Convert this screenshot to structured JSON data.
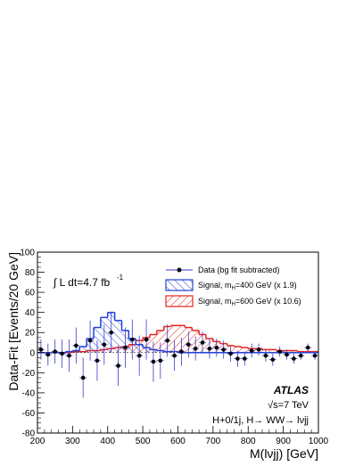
{
  "chart_data": {
    "type": "histogram",
    "title": "",
    "xlabel": "M(lνjj) [GeV]",
    "ylabel": "Data-Fit [Events/20 GeV]",
    "xlim": [
      200,
      1000
    ],
    "ylim": [
      -80,
      100
    ],
    "x_ticks": [
      200,
      300,
      400,
      500,
      600,
      700,
      800,
      900,
      1000
    ],
    "y_ticks": [
      -80,
      -60,
      -40,
      -20,
      0,
      20,
      40,
      60,
      80,
      100
    ],
    "grid": false,
    "legend_position": "top-right",
    "lumi_label": "∫ L dt=4.7 fb",
    "lumi_superscript": "-1",
    "atlas_label": "ATLAS",
    "energy_label": "√s=7 TeV",
    "channel_label": "H+0/1j, H→ WW→ lνjj",
    "series": [
      {
        "name": "Data (bg fit subtracted)",
        "kind": "points",
        "color": "#000000",
        "x": [
          210,
          230,
          250,
          270,
          290,
          310,
          330,
          350,
          370,
          390,
          410,
          430,
          450,
          470,
          490,
          510,
          530,
          550,
          570,
          590,
          610,
          630,
          650,
          670,
          690,
          710,
          730,
          750,
          770,
          790,
          810,
          830,
          850,
          870,
          890,
          910,
          930,
          950,
          970,
          990
        ],
        "y": [
          3,
          -2,
          1,
          -1,
          -3,
          7,
          -25,
          12,
          -8,
          8,
          20,
          -13,
          5,
          13,
          -3,
          13,
          -9,
          -8,
          12,
          -3,
          1,
          8,
          4,
          10,
          4,
          5,
          3,
          -1,
          -6,
          -6,
          2,
          3,
          -3,
          -7,
          1,
          -2,
          -6,
          -3,
          5,
          -3
        ],
        "yerr": [
          10,
          11,
          12,
          14,
          16,
          18,
          20,
          20,
          20,
          20,
          20,
          20,
          20,
          20,
          20,
          20,
          20,
          18,
          16,
          15,
          14,
          13,
          12,
          11,
          10,
          9,
          9,
          8,
          8,
          7,
          7,
          6,
          6,
          6,
          5,
          5,
          5,
          4,
          4,
          4
        ]
      },
      {
        "name": "Signal, m_H=400 GeV (x 1.9)",
        "label_prefix": "Signal, m",
        "label_sub": "H",
        "label_suffix": "=400 GeV (x 1.9)",
        "kind": "hist",
        "color": "#1f3fd6",
        "bin_width": 20,
        "bin_low_edges": [
          200,
          220,
          240,
          260,
          280,
          300,
          320,
          340,
          360,
          380,
          400,
          420,
          440,
          460,
          480,
          500,
          520,
          540,
          560,
          580,
          600,
          620,
          640,
          660,
          680,
          700,
          720,
          740,
          760,
          780,
          800,
          820,
          840,
          860,
          880,
          900,
          920,
          940,
          960,
          980
        ],
        "values": [
          0,
          0,
          0,
          0,
          1,
          2,
          6,
          14,
          25,
          35,
          40,
          32,
          22,
          14,
          8,
          5,
          3,
          2,
          1,
          1,
          0,
          0,
          0,
          0,
          0,
          0,
          0,
          0,
          0,
          0,
          0,
          0,
          0,
          0,
          0,
          0,
          0,
          0,
          0,
          0
        ]
      },
      {
        "name": "Signal, m_H=600 GeV (x 10.6)",
        "label_prefix": "Signal, m",
        "label_sub": "H",
        "label_suffix": "=600 GeV (x 10.6)",
        "kind": "hist",
        "color": "#e8241c",
        "bin_width": 20,
        "bin_low_edges": [
          200,
          220,
          240,
          260,
          280,
          300,
          320,
          340,
          360,
          380,
          400,
          420,
          440,
          460,
          480,
          500,
          520,
          540,
          560,
          580,
          600,
          620,
          640,
          660,
          680,
          700,
          720,
          740,
          760,
          780,
          800,
          820,
          840,
          860,
          880,
          900,
          920,
          940,
          960,
          980
        ],
        "values": [
          0,
          0,
          0,
          0,
          0,
          1,
          1,
          2,
          2,
          3,
          4,
          5,
          6,
          8,
          12,
          15,
          18,
          22,
          26,
          27,
          27,
          25,
          22,
          18,
          14,
          11,
          9,
          7,
          6,
          5,
          4,
          4,
          3,
          3,
          2,
          2,
          2,
          1,
          1,
          1
        ]
      }
    ]
  }
}
